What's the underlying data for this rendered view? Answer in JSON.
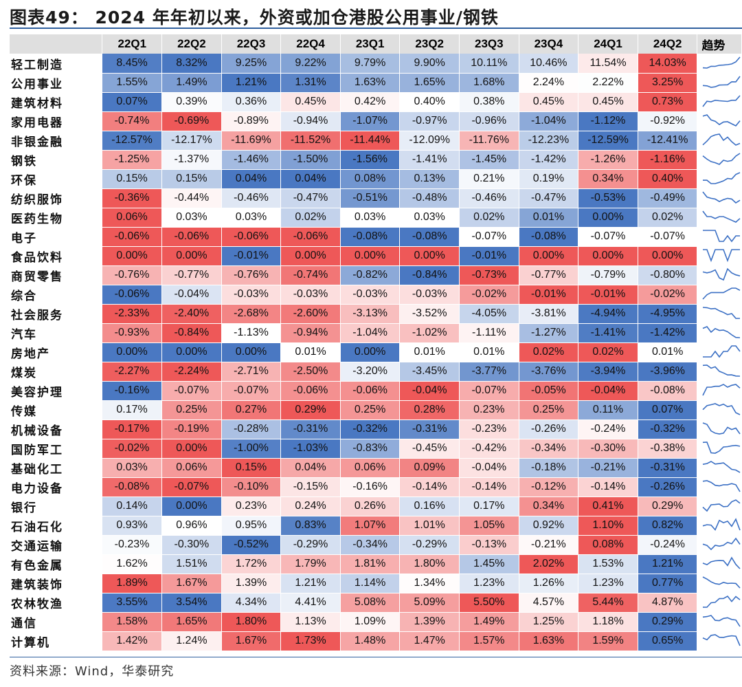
{
  "title": "图表49： 2024 年年初以来，外资或加仓港股公用事业/钢铁",
  "source": "资料来源：Wind，华泰研究",
  "chart_data": {
    "type": "heatmap",
    "title": "图表49： 2024 年年初以来，外资或加仓港股公用事业/钢铁",
    "columns": [
      "22Q1",
      "22Q2",
      "22Q3",
      "22Q4",
      "23Q1",
      "23Q2",
      "23Q3",
      "23Q4",
      "24Q1",
      "24Q2"
    ],
    "trend_header": "趋势",
    "color_scale": {
      "high": "#ee5858",
      "mid": "#ffffff",
      "low": "#4a78c2"
    },
    "rows": [
      {
        "name": "轻工制造",
        "values": [
          8.45,
          8.32,
          9.25,
          9.22,
          9.79,
          9.9,
          10.11,
          10.46,
          11.54,
          14.03
        ]
      },
      {
        "name": "公用事业",
        "values": [
          1.55,
          1.49,
          1.21,
          1.31,
          1.63,
          1.65,
          1.68,
          2.24,
          2.22,
          3.25
        ]
      },
      {
        "name": "建筑材料",
        "values": [
          0.07,
          0.39,
          0.36,
          0.45,
          0.42,
          0.4,
          0.38,
          0.45,
          0.45,
          0.73
        ]
      },
      {
        "name": "家用电器",
        "values": [
          -0.74,
          -0.69,
          -0.89,
          -0.94,
          -1.07,
          -0.97,
          -0.96,
          -1.04,
          -1.12,
          -0.92
        ]
      },
      {
        "name": "非银金融",
        "values": [
          -12.57,
          -12.17,
          -11.69,
          -11.52,
          -11.44,
          -12.09,
          -11.76,
          -12.23,
          -12.59,
          -12.41
        ]
      },
      {
        "name": "钢铁",
        "values": [
          -1.25,
          -1.37,
          -1.46,
          -1.5,
          -1.56,
          -1.41,
          -1.45,
          -1.42,
          -1.26,
          -1.16
        ]
      },
      {
        "name": "环保",
        "values": [
          0.15,
          0.15,
          0.04,
          0.04,
          0.08,
          0.13,
          0.21,
          0.19,
          0.34,
          0.4
        ]
      },
      {
        "name": "纺织服饰",
        "values": [
          -0.36,
          -0.44,
          -0.46,
          -0.47,
          -0.51,
          -0.48,
          -0.46,
          -0.47,
          -0.53,
          -0.49
        ]
      },
      {
        "name": "医药生物",
        "values": [
          0.06,
          0.03,
          0.03,
          0.02,
          0.03,
          0.03,
          0.02,
          0.01,
          0.0,
          0.02
        ]
      },
      {
        "name": "电子",
        "values": [
          -0.06,
          -0.06,
          -0.06,
          -0.06,
          -0.08,
          -0.08,
          -0.07,
          -0.08,
          -0.07,
          -0.07
        ]
      },
      {
        "name": "食品饮料",
        "values": [
          0.0,
          0.0,
          -0.01,
          0.0,
          0.0,
          0.0,
          -0.01,
          0.0,
          0.0,
          0.0
        ]
      },
      {
        "name": "商贸零售",
        "values": [
          -0.76,
          -0.77,
          -0.76,
          -0.74,
          -0.82,
          -0.84,
          -0.73,
          -0.77,
          -0.79,
          -0.8
        ]
      },
      {
        "name": "综合",
        "values": [
          -0.06,
          -0.04,
          -0.03,
          -0.03,
          -0.03,
          -0.03,
          -0.02,
          -0.01,
          -0.01,
          -0.02
        ]
      },
      {
        "name": "社会服务",
        "values": [
          -2.33,
          -2.4,
          -2.68,
          -2.6,
          -3.13,
          -3.52,
          -4.05,
          -3.81,
          -4.94,
          -4.95
        ]
      },
      {
        "name": "汽车",
        "values": [
          -0.93,
          -0.84,
          -1.13,
          -0.94,
          -1.04,
          -1.02,
          -1.11,
          -1.27,
          -1.41,
          -1.42
        ]
      },
      {
        "name": "房地产",
        "values": [
          0.0,
          0.0,
          0.0,
          0.01,
          0.0,
          0.01,
          0.01,
          0.02,
          0.02,
          0.01
        ]
      },
      {
        "name": "煤炭",
        "values": [
          -2.27,
          -2.24,
          -2.71,
          -2.5,
          -3.2,
          -3.45,
          -3.77,
          -3.76,
          -3.94,
          -3.96
        ]
      },
      {
        "name": "美容护理",
        "values": [
          -0.16,
          -0.07,
          -0.07,
          -0.06,
          -0.06,
          -0.04,
          -0.07,
          -0.05,
          -0.04,
          -0.08
        ]
      },
      {
        "name": "传媒",
        "values": [
          0.17,
          0.25,
          0.27,
          0.29,
          0.25,
          0.28,
          0.23,
          0.25,
          0.11,
          0.07
        ]
      },
      {
        "name": "机械设备",
        "values": [
          -0.17,
          -0.19,
          -0.28,
          -0.31,
          -0.32,
          -0.31,
          -0.23,
          -0.26,
          -0.24,
          -0.32
        ]
      },
      {
        "name": "国防军工",
        "values": [
          -0.02,
          0.0,
          -1.0,
          -1.03,
          -0.83,
          -0.45,
          -0.42,
          -0.34,
          -0.3,
          -0.38
        ]
      },
      {
        "name": "基础化工",
        "values": [
          0.03,
          0.06,
          0.15,
          0.04,
          0.06,
          0.09,
          -0.04,
          -0.18,
          -0.21,
          -0.31
        ]
      },
      {
        "name": "电力设备",
        "values": [
          -0.08,
          -0.07,
          -0.1,
          -0.15,
          -0.16,
          -0.14,
          -0.14,
          -0.12,
          -0.14,
          -0.26
        ]
      },
      {
        "name": "银行",
        "values": [
          0.14,
          0.0,
          0.23,
          0.24,
          0.26,
          0.16,
          0.17,
          0.34,
          0.41,
          0.29
        ]
      },
      {
        "name": "石油石化",
        "values": [
          0.93,
          0.96,
          0.95,
          0.83,
          1.07,
          1.01,
          1.05,
          0.92,
          1.1,
          0.82
        ]
      },
      {
        "name": "交通运输",
        "values": [
          -0.23,
          -0.3,
          -0.52,
          -0.29,
          -0.34,
          -0.29,
          -0.13,
          -0.21,
          0.08,
          -0.24
        ]
      },
      {
        "name": "有色金属",
        "values": [
          1.62,
          1.51,
          1.72,
          1.79,
          1.81,
          1.8,
          1.45,
          2.02,
          1.53,
          1.21
        ]
      },
      {
        "name": "建筑装饰",
        "values": [
          1.89,
          1.67,
          1.39,
          1.21,
          1.14,
          1.34,
          1.23,
          1.26,
          1.23,
          0.77
        ]
      },
      {
        "name": "农林牧渔",
        "values": [
          3.55,
          3.54,
          4.34,
          4.41,
          5.08,
          5.09,
          5.5,
          4.57,
          5.44,
          4.87
        ]
      },
      {
        "name": "通信",
        "values": [
          1.58,
          1.65,
          1.8,
          1.13,
          1.09,
          1.39,
          1.49,
          1.25,
          1.18,
          0.29
        ]
      },
      {
        "name": "计算机",
        "values": [
          1.42,
          1.24,
          1.67,
          1.73,
          1.48,
          1.47,
          1.57,
          1.63,
          1.59,
          0.65
        ]
      }
    ]
  }
}
